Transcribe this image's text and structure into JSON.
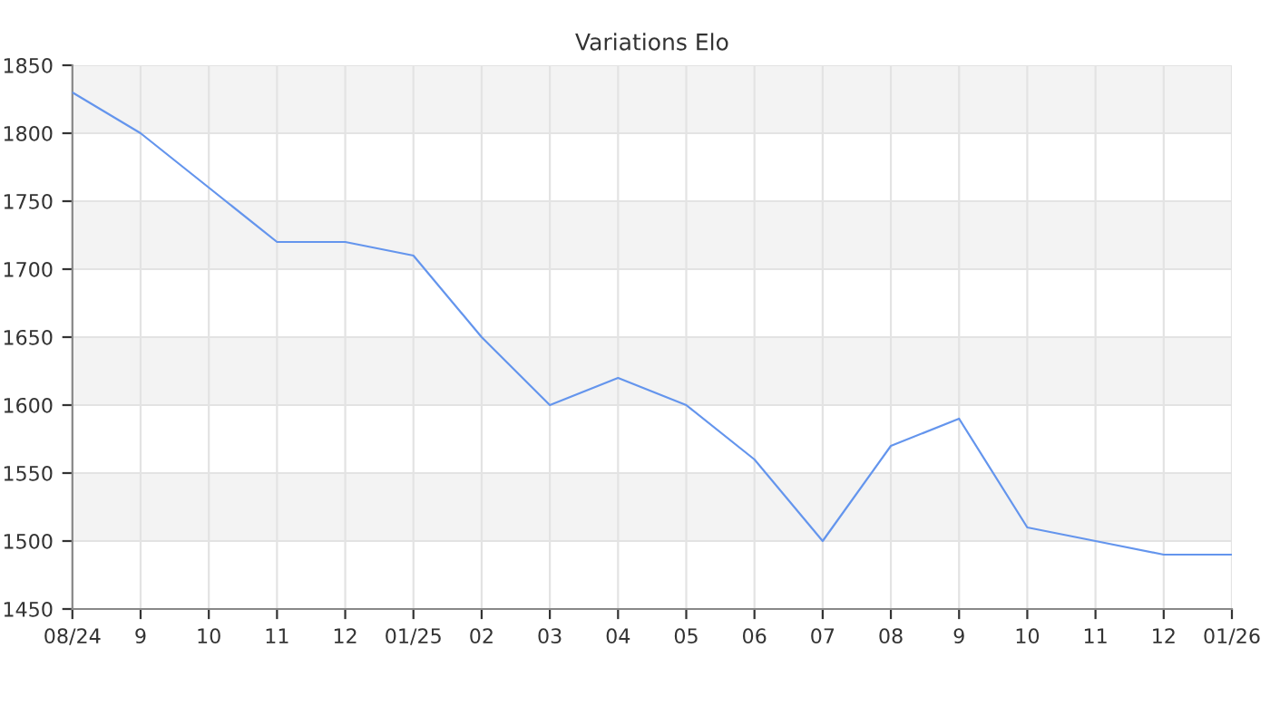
{
  "chart_data": {
    "type": "line",
    "title": "Variations Elo",
    "categories": [
      "08/24",
      "9",
      "10",
      "11",
      "12",
      "01/25",
      "02",
      "03",
      "04",
      "05",
      "06",
      "07",
      "08",
      "9",
      "10",
      "11",
      "12",
      "01/26"
    ],
    "series": [
      {
        "color": "#6495ed",
        "values": [
          1830,
          1800,
          1760,
          1720,
          1720,
          1710,
          1650,
          1600,
          1620,
          1600,
          1560,
          1500,
          1570,
          1590,
          1510,
          1500,
          1490,
          1490
        ]
      }
    ],
    "ylim": [
      1450,
      1850
    ],
    "yticks": [
      1450,
      1500,
      1550,
      1600,
      1650,
      1700,
      1750,
      1800,
      1850
    ],
    "bands": [
      {
        "axis": "y",
        "from": 1500,
        "to": 1550,
        "color": "#f3f3f3"
      },
      {
        "axis": "y",
        "from": 1600,
        "to": 1650,
        "color": "#f3f3f3"
      },
      {
        "axis": "y",
        "from": 1700,
        "to": 1750,
        "color": "#f3f3f3"
      },
      {
        "axis": "y",
        "from": 1800,
        "to": 1850,
        "color": "#f3f3f3"
      }
    ],
    "grid": true,
    "legend": false
  }
}
